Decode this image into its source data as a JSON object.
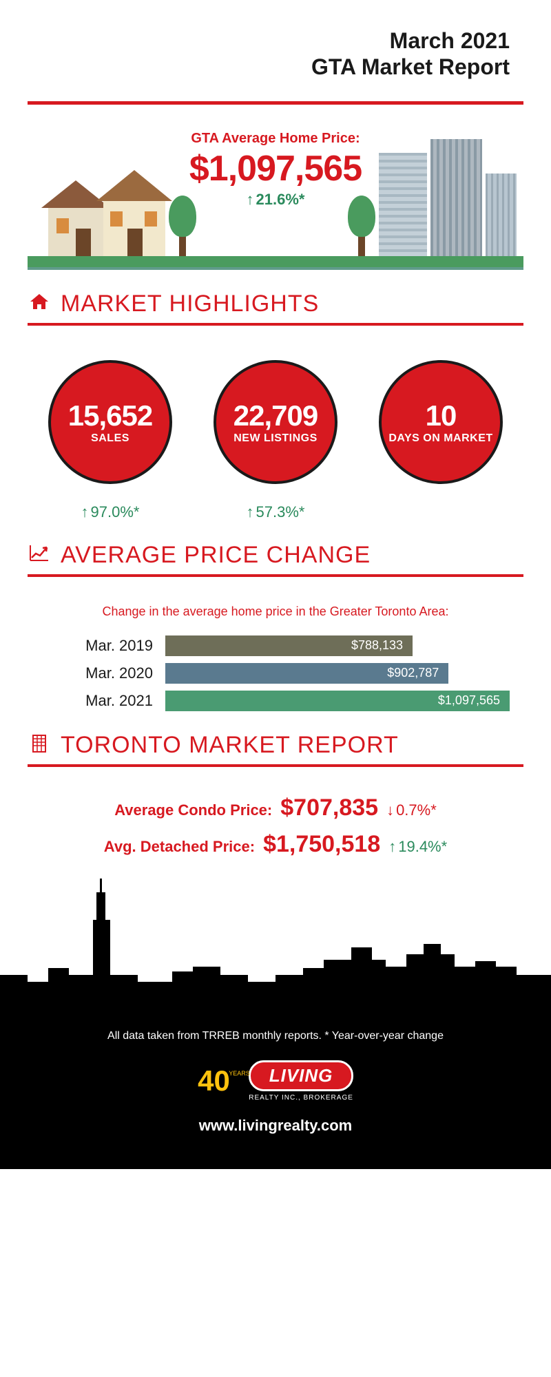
{
  "header": {
    "line1": "March 2021",
    "line2": "GTA Market Report"
  },
  "hero": {
    "label": "GTA Average Home Price:",
    "price": "$1,097,565",
    "change": "21.6%*"
  },
  "colors": {
    "brand_red": "#d71920",
    "green": "#2a8a5c",
    "black": "#000000"
  },
  "sections": {
    "highlights_title": "MARKET HIGHLIGHTS",
    "price_change_title": "AVERAGE PRICE CHANGE",
    "toronto_title": "TORONTO MARKET REPORT"
  },
  "highlights": [
    {
      "value": "15,652",
      "label": "SALES",
      "change": "97.0%*"
    },
    {
      "value": "22,709",
      "label": "NEW LISTINGS",
      "change": "57.3%*"
    },
    {
      "value": "10",
      "label": "DAYS ON MARKET",
      "change": ""
    }
  ],
  "price_change": {
    "caption": "Change in the average home price in the Greater Toronto Area:",
    "max_value": 1097565,
    "bars": [
      {
        "label": "Mar. 2019",
        "value_text": "$788,133",
        "value": 788133,
        "color": "#6e6e58"
      },
      {
        "label": "Mar. 2020",
        "value_text": "$902,787",
        "value": 902787,
        "color": "#5a7a8f"
      },
      {
        "label": "Mar. 2021",
        "value_text": "$1,097,565",
        "value": 1097565,
        "color": "#4a9b72"
      }
    ]
  },
  "toronto": {
    "metrics": [
      {
        "label": "Average Condo Price:",
        "value": "$707,835",
        "change": "0.7%*",
        "direction": "down"
      },
      {
        "label": "Avg. Detached Price:",
        "value": "$1,750,518",
        "change": "19.4%*",
        "direction": "up"
      }
    ]
  },
  "footer": {
    "note": "All data taken from TRREB monthly reports.  * Year-over-year change",
    "logo_40": "40",
    "logo_years": "YEARS",
    "logo_living": "LIVING",
    "logo_sub": "REALTY INC., BROKERAGE",
    "url": "www.livingrealty.com"
  }
}
